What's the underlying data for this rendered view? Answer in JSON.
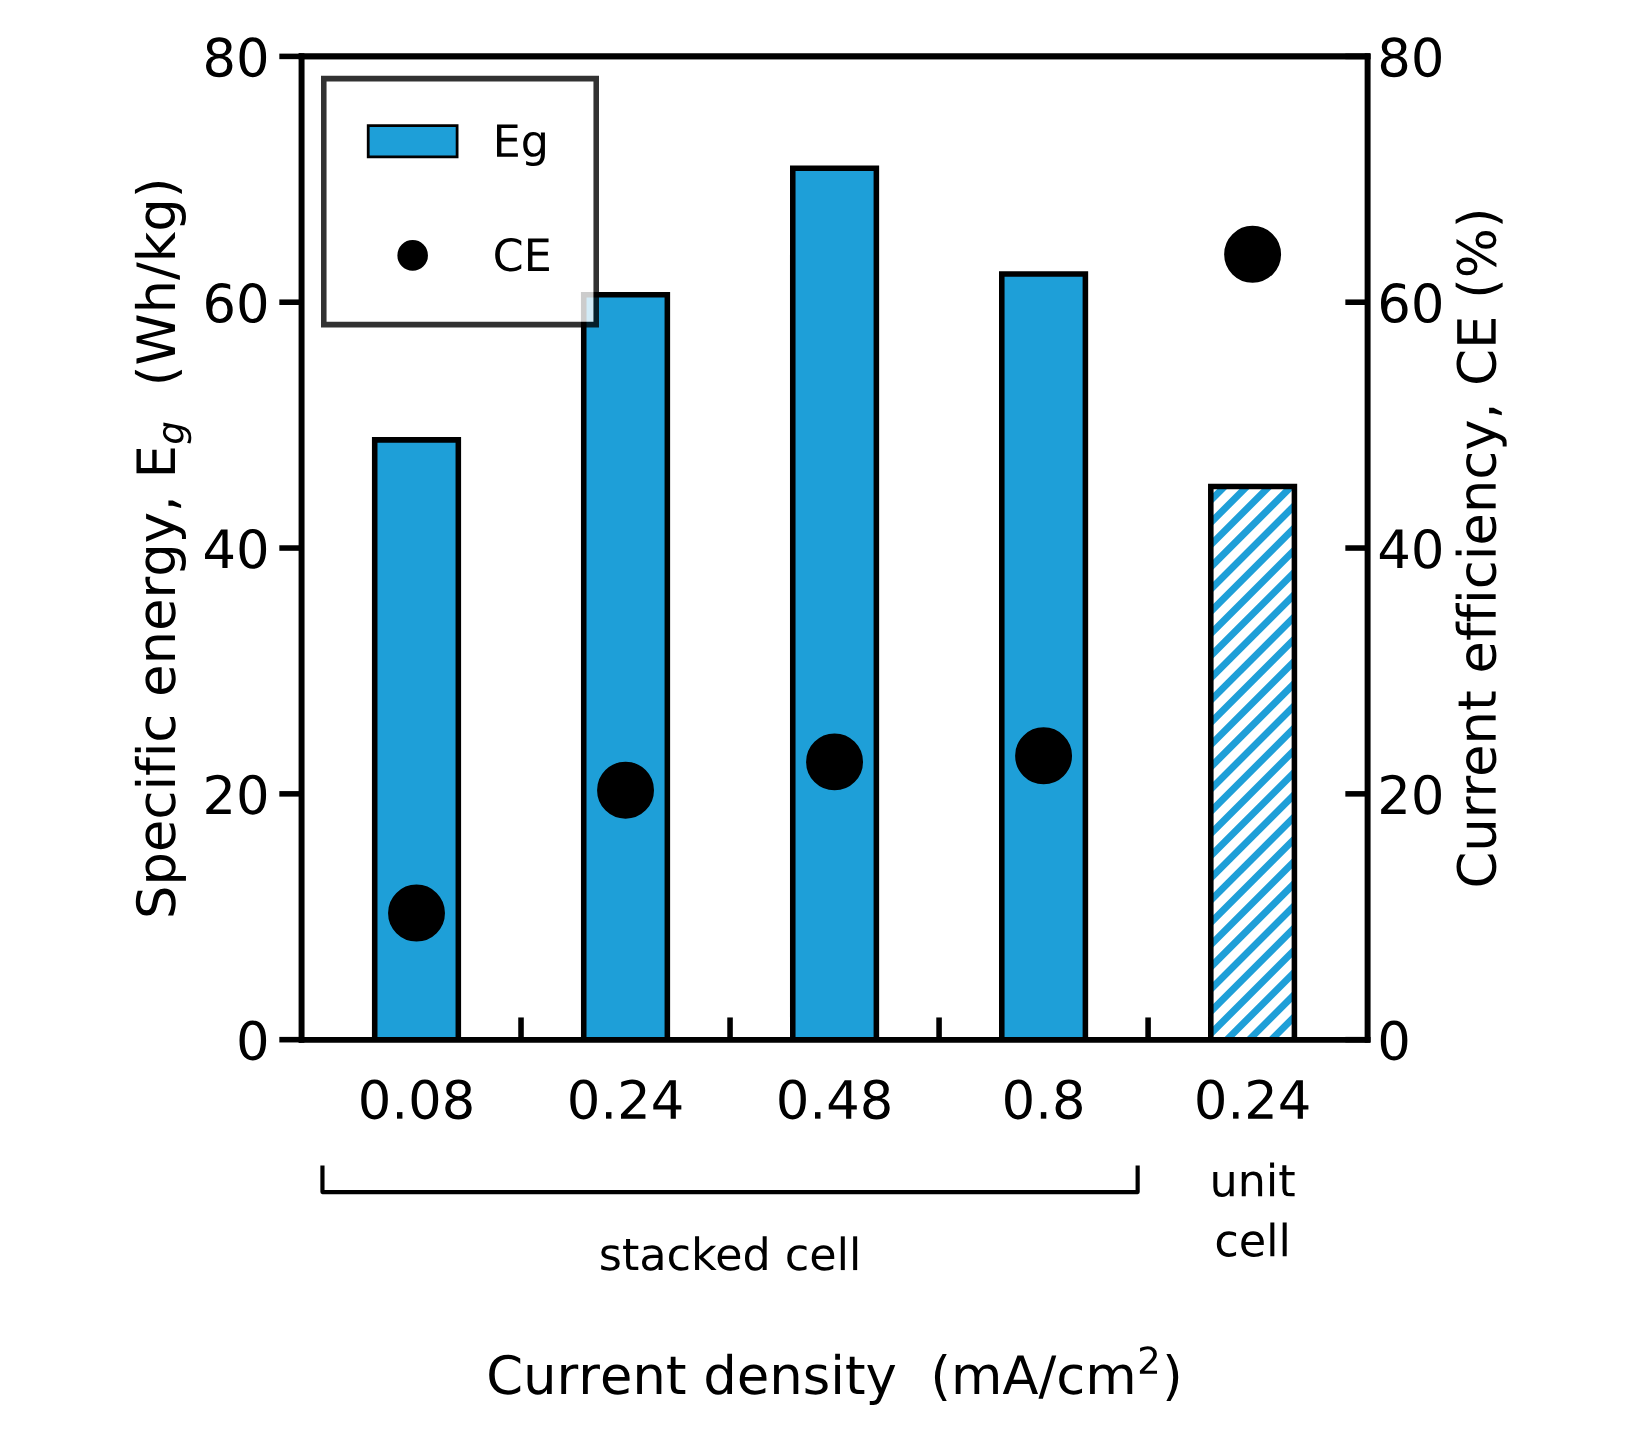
{
  "chart_data": {
    "type": "bar",
    "categories": [
      "0.08",
      "0.24",
      "0.48",
      "0.8",
      "0.24"
    ],
    "xlabel": "Current density  (mA/cm$^{2}$)",
    "ylabel": "Specific energy, E$_{g}$  (Wh/kg)",
    "y2label": "Current efficiency, CE (%)",
    "ylim": [
      0,
      80
    ],
    "yticks": [
      0,
      20,
      40,
      60,
      80
    ],
    "y2lim": [
      0,
      80
    ],
    "y2ticks": [
      0,
      20,
      40,
      60,
      80
    ],
    "series": [
      {
        "name": "Eg",
        "color": "#1e9fd8",
        "values": [
          48.8,
          60.6,
          70.9,
          62.3,
          null
        ]
      },
      {
        "color": "#1e9fd8",
        "values": [
          null,
          null,
          null,
          null,
          45.0
        ]
      },
      {
        "name": "CE",
        "type": "scatter",
        "axis": "y2",
        "color": "#000000",
        "values": [
          10.3,
          20.3,
          22.6,
          23.1,
          63.9
        ]
      }
    ],
    "annotations": [
      "stacked cell",
      "unit\ncell"
    ],
    "legend": "top left",
    "grid": false
  }
}
